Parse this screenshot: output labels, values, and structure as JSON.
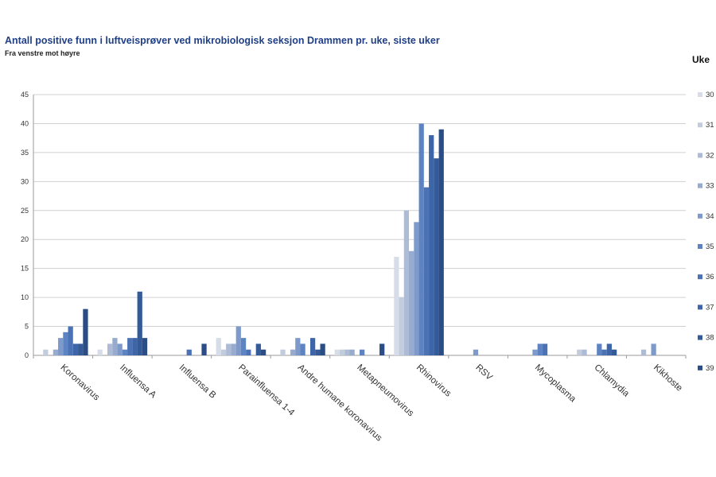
{
  "chart_data": {
    "type": "bar",
    "title": "Antall positive funn i luftveisprøver ved mikrobiologisk seksjon Drammen pr. uke, siste uker",
    "subtitle": "Fra venstre mot høyre",
    "legend_title": "Uke",
    "legend_position": "right",
    "grid": true,
    "ylim": [
      0,
      45
    ],
    "yticks": [
      0,
      5,
      10,
      15,
      20,
      25,
      30,
      35,
      40,
      45
    ],
    "categories": [
      "Koronavirus",
      "Influensa A",
      "Influensa B",
      "Parainfluensa 1-4",
      "Andre humane koronavirus",
      "Metapneumovirus",
      "Rhinovirus",
      "RSV",
      "Mycoplasma",
      "Chlamydia",
      "Kikhoste"
    ],
    "series": [
      {
        "name": "30",
        "color": "#d7dde8",
        "values": [
          0,
          1,
          0,
          3,
          0,
          1,
          17,
          0,
          0,
          0,
          0
        ]
      },
      {
        "name": "31",
        "color": "#c3ccdd",
        "values": [
          1,
          0,
          0,
          1,
          1,
          1,
          10,
          0,
          0,
          1,
          0
        ]
      },
      {
        "name": "32",
        "color": "#aebbd5",
        "values": [
          0,
          2,
          0,
          2,
          0,
          1,
          25,
          0,
          0,
          1,
          1
        ]
      },
      {
        "name": "33",
        "color": "#97abcf",
        "values": [
          1,
          3,
          0,
          2,
          1,
          1,
          18,
          0,
          0,
          0,
          0
        ]
      },
      {
        "name": "34",
        "color": "#7e9acb",
        "values": [
          3,
          2,
          0,
          5,
          3,
          0,
          23,
          1,
          1,
          0,
          2
        ]
      },
      {
        "name": "35",
        "color": "#5d83c3",
        "values": [
          4,
          1,
          0,
          3,
          2,
          1,
          40,
          0,
          2,
          2,
          0
        ]
      },
      {
        "name": "36",
        "color": "#4a72b4",
        "values": [
          5,
          3,
          1,
          1,
          0,
          0,
          29,
          0,
          2,
          1,
          0
        ]
      },
      {
        "name": "37",
        "color": "#3d65a8",
        "values": [
          2,
          3,
          0,
          0,
          3,
          0,
          38,
          0,
          0,
          2,
          0
        ]
      },
      {
        "name": "38",
        "color": "#345a98",
        "values": [
          2,
          11,
          0,
          2,
          1,
          0,
          34,
          0,
          0,
          1,
          0
        ]
      },
      {
        "name": "39",
        "color": "#2a4d86",
        "values": [
          8,
          3,
          2,
          1,
          2,
          2,
          39,
          0,
          0,
          0,
          0
        ]
      }
    ]
  }
}
